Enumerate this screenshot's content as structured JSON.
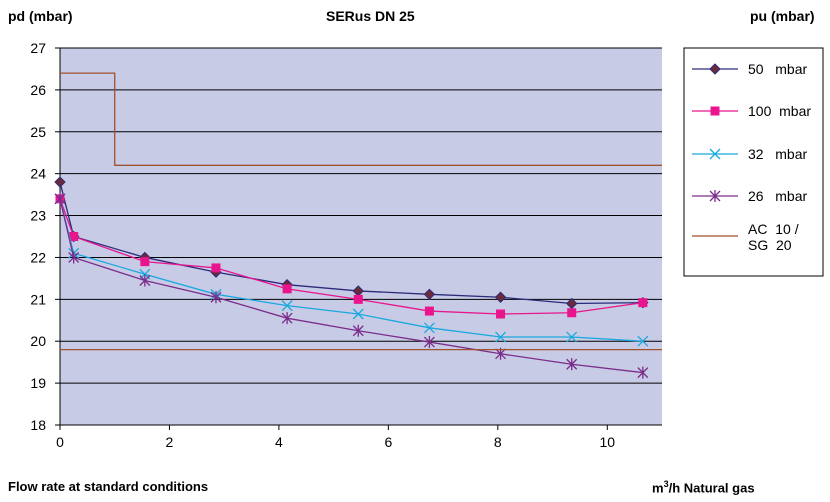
{
  "header": {
    "left": "pd (mbar)",
    "title": "SERus DN 25",
    "right": "pu (mbar)"
  },
  "footer": {
    "left": "Flow rate at standard conditions",
    "right_prefix": "m",
    "right_sup": "3",
    "right_suffix": "/h Natural gas"
  },
  "chart_data": {
    "type": "line",
    "title": "SERus DN 25",
    "ylabel": "pd (mbar)",
    "xlabel": "Flow rate at standard conditions",
    "xunit": "m³/h Natural gas",
    "xlim": [
      0,
      11
    ],
    "ylim": [
      18,
      27
    ],
    "xticks": [
      0,
      2,
      4,
      6,
      8,
      10
    ],
    "yticks": [
      18,
      19,
      20,
      21,
      22,
      23,
      24,
      25,
      26,
      27
    ],
    "plot_background": "#c8cbe6",
    "grid": "horizontal",
    "legend_position": "right",
    "series": [
      {
        "name": "50   mbar",
        "color": "#2b2b7a",
        "marker": "diamond",
        "x": [
          0,
          0.25,
          1.55,
          2.85,
          4.15,
          5.45,
          6.75,
          8.05,
          9.35,
          10.65
        ],
        "y": [
          23.8,
          22.5,
          22.0,
          21.65,
          21.35,
          21.2,
          21.12,
          21.05,
          20.9,
          20.92
        ]
      },
      {
        "name": "100  mbar",
        "color": "#e8158c",
        "marker": "square",
        "x": [
          0,
          0.25,
          1.55,
          2.85,
          4.15,
          5.45,
          6.75,
          8.05,
          9.35,
          10.65
        ],
        "y": [
          23.4,
          22.5,
          21.9,
          21.75,
          21.25,
          21.0,
          20.72,
          20.65,
          20.68,
          20.92
        ]
      },
      {
        "name": "32   mbar",
        "color": "#1aa9df",
        "marker": "x",
        "x": [
          0,
          0.25,
          1.55,
          2.85,
          4.15,
          5.45,
          6.75,
          8.05,
          9.35,
          10.65
        ],
        "y": [
          23.4,
          22.1,
          21.6,
          21.12,
          20.85,
          20.65,
          20.32,
          20.1,
          20.1,
          20.0
        ]
      },
      {
        "name": "26   mbar",
        "color": "#7a2d8a",
        "marker": "asterisk",
        "x": [
          0,
          0.25,
          1.55,
          2.85,
          4.15,
          5.45,
          6.75,
          8.05,
          9.35,
          10.65
        ],
        "y": [
          23.4,
          22.0,
          21.45,
          21.05,
          20.55,
          20.25,
          19.98,
          19.7,
          19.45,
          19.25
        ]
      },
      {
        "name": "AC  10 /\nSG  20",
        "color": "#a0522d",
        "marker": "none",
        "label_lines": [
          "AC  10 /",
          "SG  20"
        ],
        "x": [
          0,
          1,
          1,
          11
        ],
        "y": [
          26.4,
          26.4,
          24.2,
          24.2
        ],
        "x2": [
          0,
          11
        ],
        "y2": [
          19.8,
          19.8
        ]
      }
    ]
  }
}
